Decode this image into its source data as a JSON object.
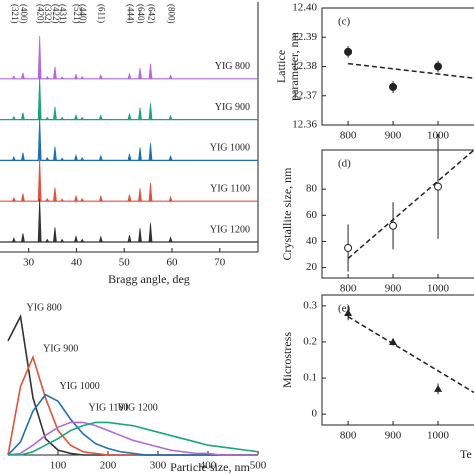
{
  "chart_data": [
    {
      "type": "xrd",
      "x_label": "Bragg angle, deg",
      "xlim": [
        24,
        78
      ],
      "xticks": [
        30,
        40,
        50,
        60,
        70
      ],
      "ylim": [
        0,
        100
      ],
      "peaks": {
        "x": [
          26.9,
          28.8,
          32.3,
          33.9,
          35.5,
          37.0,
          39.9,
          41.2,
          45.1,
          51.1,
          53.3,
          55.5,
          59.7
        ],
        "labels": [
          "(321)",
          "(400)",
          "(420)",
          "(332)",
          "(422)",
          "(431)",
          "(521)",
          "(440)",
          "(611)",
          "(444)",
          "(640)",
          "(642)",
          "(800)"
        ]
      },
      "series": [
        {
          "name": "YIG 800",
          "color": "#b36ad6",
          "values": [
            6,
            14,
            100,
            5,
            28,
            4,
            10,
            5,
            9,
            12,
            25,
            35,
            8
          ]
        },
        {
          "name": "YIG 900",
          "color": "#1aa67a",
          "values": [
            7,
            16,
            100,
            5,
            30,
            5,
            11,
            5,
            10,
            14,
            28,
            38,
            9
          ]
        },
        {
          "name": "YIG 1000",
          "color": "#1f6fb4",
          "values": [
            8,
            18,
            100,
            6,
            32,
            5,
            12,
            6,
            11,
            15,
            30,
            40,
            10
          ]
        },
        {
          "name": "YIG 1100",
          "color": "#e0533c",
          "values": [
            8,
            18,
            100,
            6,
            32,
            5,
            12,
            6,
            12,
            15,
            30,
            42,
            10
          ]
        },
        {
          "name": "YIG 1200",
          "color": "#333333",
          "values": [
            9,
            20,
            100,
            6,
            34,
            6,
            13,
            6,
            12,
            16,
            32,
            44,
            11
          ]
        }
      ]
    },
    {
      "type": "line",
      "x_label": "Particle size, nm",
      "xlim": [
        0,
        500
      ],
      "xticks": [
        100,
        200,
        300,
        400,
        500
      ],
      "ylim": [
        0,
        1
      ],
      "x": [
        0,
        25,
        50,
        75,
        100,
        125,
        150,
        175,
        200,
        225,
        250,
        275,
        300,
        325,
        350,
        375,
        400,
        425,
        450,
        475,
        500
      ],
      "series": [
        {
          "name": "YIG 800",
          "color": "#333333",
          "values": [
            0.7,
            0.85,
            0.35,
            0.1,
            0.03,
            0.01,
            0,
            0,
            0,
            0,
            0,
            0,
            0,
            0,
            0,
            0,
            0,
            0,
            0,
            0,
            0
          ]
        },
        {
          "name": "YIG 900",
          "color": "#e0533c",
          "values": [
            0,
            0.42,
            0.6,
            0.35,
            0.15,
            0.06,
            0.02,
            0.01,
            0,
            0,
            0,
            0,
            0,
            0,
            0,
            0,
            0,
            0,
            0,
            0,
            0
          ]
        },
        {
          "name": "YIG 1000",
          "color": "#1f6fb4",
          "values": [
            0,
            0.08,
            0.27,
            0.37,
            0.33,
            0.22,
            0.13,
            0.07,
            0.04,
            0.02,
            0.01,
            0,
            0,
            0,
            0,
            0,
            0,
            0,
            0,
            0,
            0
          ]
        },
        {
          "name": "YIG 1100",
          "color": "#b36ad6",
          "values": [
            0,
            0.01,
            0.06,
            0.12,
            0.17,
            0.2,
            0.2,
            0.18,
            0.15,
            0.12,
            0.09,
            0.07,
            0.05,
            0.03,
            0.02,
            0.01,
            0.01,
            0,
            0,
            0,
            0
          ]
        },
        {
          "name": "YIG 1200",
          "color": "#1aa67a",
          "values": [
            0,
            0,
            0.02,
            0.06,
            0.1,
            0.15,
            0.18,
            0.2,
            0.2,
            0.19,
            0.18,
            0.16,
            0.14,
            0.12,
            0.1,
            0.08,
            0.06,
            0.05,
            0.04,
            0.03,
            0.02
          ]
        }
      ]
    },
    {
      "type": "scatter",
      "panel_label": "(c)",
      "y_label": [
        "Lattice",
        "parameter, nm"
      ],
      "marker": "filled-circle",
      "xlim": [
        742,
        1080
      ],
      "xticks": [
        800,
        900,
        1000
      ],
      "ylim": [
        12.36,
        12.4
      ],
      "yticks": [
        12.36,
        12.37,
        12.38,
        12.39,
        {
          "value": 12.4,
          "label": "12.40"
        }
      ],
      "x": [
        800,
        900,
        1000
      ],
      "values": [
        12.385,
        12.373,
        12.38
      ],
      "errors": [
        0.002,
        0.002,
        0.002
      ],
      "fit": {
        "x": [
          800,
          1080
        ],
        "y": [
          12.381,
          12.376
        ]
      }
    },
    {
      "type": "scatter",
      "panel_label": "(d)",
      "y_label": [
        "Crystallite size, nm"
      ],
      "marker": "open-circle",
      "xlim": [
        742,
        1080
      ],
      "xticks": [
        800,
        900,
        1000
      ],
      "ylim": [
        12,
        110
      ],
      "yticks": [
        20,
        40,
        60,
        80
      ],
      "x": [
        800,
        900,
        1000
      ],
      "values": [
        35,
        52,
        82
      ],
      "errors": [
        18,
        18,
        40
      ],
      "fit": {
        "x": [
          800,
          1080
        ],
        "y": [
          27,
          110
        ]
      }
    },
    {
      "type": "scatter",
      "panel_label": "(e)",
      "y_label": [
        "Microstress"
      ],
      "x_label": "Te",
      "marker": "triangle",
      "xlim": [
        742,
        1080
      ],
      "xticks": [
        800,
        900,
        1000
      ],
      "ylim": [
        -0.03,
        0.33
      ],
      "yticks": [
        0,
        0.1,
        0.2,
        0.3
      ],
      "x": [
        800,
        900,
        1000
      ],
      "values": [
        0.28,
        0.2,
        0.07
      ],
      "errors": [
        0.02,
        0.01,
        0.015
      ],
      "fit": {
        "x": [
          800,
          1080
        ],
        "y": [
          0.27,
          0.06
        ]
      }
    }
  ]
}
